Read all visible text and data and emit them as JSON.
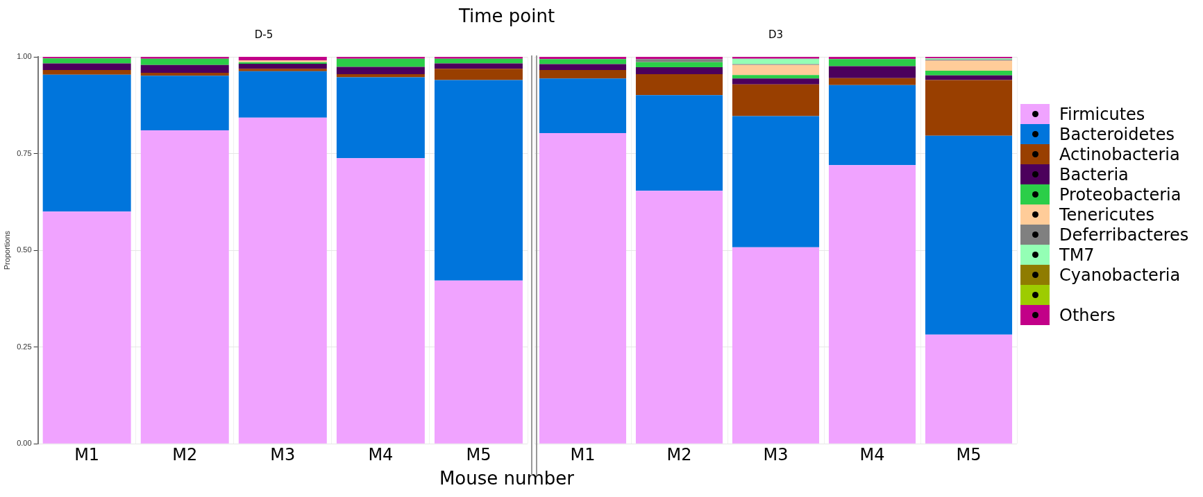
{
  "chart_data": [
    {
      "type": "bar",
      "title": "Time point",
      "subtitle": "D-5",
      "xlabel": "Mouse number",
      "ylabel": "Proportions",
      "stacked": true,
      "grid": true,
      "legend": "right",
      "categories": [
        "M1",
        "M2",
        "M3",
        "M4",
        "M5"
      ],
      "ylim": [
        0,
        1
      ],
      "yticks": [
        {
          "value": 0,
          "label": "0.00"
        },
        {
          "value": 0.25,
          "label": "0.25"
        },
        {
          "value": 0.5,
          "label": "0.50"
        },
        {
          "value": 0.75,
          "label": "0.75"
        },
        {
          "value": 1,
          "label": "1.00"
        }
      ],
      "series": [
        {
          "name": "Firmicutes",
          "color": "#f0a3ff",
          "values": [
            0.6,
            0.81,
            0.843,
            0.738,
            0.422
          ]
        },
        {
          "name": "Bacteroidetes",
          "color": "#0075dc",
          "values": [
            0.354,
            0.141,
            0.12,
            0.209,
            0.518
          ]
        },
        {
          "name": "Actinobacteria",
          "color": "#993f00",
          "values": [
            0.012,
            0.008,
            0.006,
            0.008,
            0.029
          ]
        },
        {
          "name": "Bacteria",
          "color": "#4c005c",
          "values": [
            0.017,
            0.02,
            0.013,
            0.019,
            0.014
          ]
        },
        {
          "name": "Proteobacteria",
          "color": "#2bce48",
          "values": [
            0.013,
            0.016,
            0.004,
            0.021,
            0.012
          ]
        },
        {
          "name": "Tenericutes",
          "color": "#ffcc99",
          "values": [
            0,
            0,
            0.005,
            0,
            0
          ]
        },
        {
          "name": "Others",
          "color": "#c20088",
          "values": [
            0.004,
            0.005,
            0.009,
            0.005,
            0.005
          ]
        }
      ]
    },
    {
      "type": "bar",
      "subtitle": "D3",
      "stacked": true,
      "grid": true,
      "legend": "right",
      "tick_labels": "x",
      "categories": [
        "M1",
        "M2",
        "M3",
        "M4",
        "M5"
      ],
      "ylim": [
        0,
        1
      ],
      "yticks": [
        {
          "value": 0,
          "label": null
        },
        {
          "value": 0.25,
          "label": null
        },
        {
          "value": 0.5,
          "label": null
        },
        {
          "value": 0.75,
          "label": null
        },
        {
          "value": 1,
          "label": null
        }
      ],
      "series": [
        {
          "name": "Firmicutes",
          "color": "#f0a3ff",
          "values": [
            0.803,
            0.654,
            0.508,
            0.72,
            0.282
          ]
        },
        {
          "name": "Bacteroidetes",
          "color": "#0075dc",
          "values": [
            0.141,
            0.247,
            0.339,
            0.207,
            0.514
          ]
        },
        {
          "name": "Actinobacteria",
          "color": "#993f00",
          "values": [
            0.022,
            0.054,
            0.082,
            0.018,
            0.144
          ]
        },
        {
          "name": "Bacteria",
          "color": "#4c005c",
          "values": [
            0.015,
            0.018,
            0.015,
            0.031,
            0.012
          ]
        },
        {
          "name": "Proteobacteria",
          "color": "#2bce48",
          "values": [
            0.013,
            0.013,
            0.009,
            0.018,
            0.012
          ]
        },
        {
          "name": "Tenericutes",
          "color": "#ffcc99",
          "values": [
            0,
            0,
            0.026,
            0,
            0.026
          ]
        },
        {
          "name": "Deferribacteres",
          "color": "#808080",
          "values": [
            0,
            0.008,
            0.002,
            0,
            0.003
          ]
        },
        {
          "name": "TM7",
          "color": "#94ffb5",
          "values": [
            0,
            0,
            0.014,
            0,
            0.003
          ]
        },
        {
          "name": "Cyanobacteria",
          "color": "#8f7c00",
          "values": [
            0,
            0,
            0,
            0,
            0
          ]
        },
        {
          "color": "#9dcc00",
          "values": [
            0,
            0,
            0,
            0,
            0
          ]
        },
        {
          "name": "Others",
          "color": "#c20088",
          "values": [
            0.006,
            0.006,
            0.005,
            0.006,
            0.004
          ]
        }
      ]
    }
  ]
}
